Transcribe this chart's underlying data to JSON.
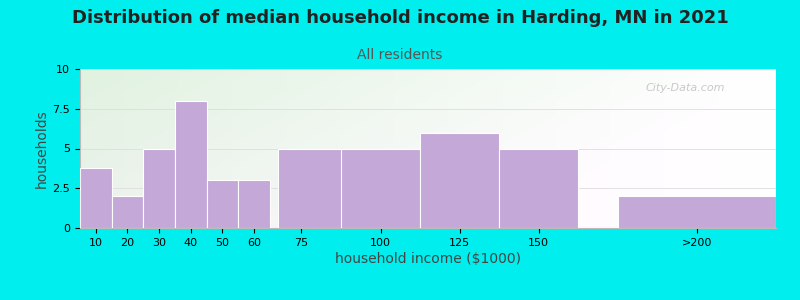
{
  "title": "Distribution of median household income in Harding, MN in 2021",
  "subtitle": "All residents",
  "xlabel": "household income ($1000)",
  "ylabel": "households",
  "background_color": "#00EEEE",
  "bar_color": "#C4A8D8",
  "bar_edge_color": "#ffffff",
  "categories": [
    "10",
    "20",
    "30",
    "40",
    "50",
    "60",
    "75",
    "100",
    "125",
    "150",
    ">200"
  ],
  "values": [
    3.8,
    2.0,
    5.0,
    8.0,
    3.0,
    3.0,
    5.0,
    5.0,
    6.0,
    5.0,
    2.0
  ],
  "bar_lefts": [
    5,
    15,
    25,
    35,
    45,
    55,
    67.5,
    87.5,
    112.5,
    137.5,
    175
  ],
  "bar_widths": [
    10,
    10,
    10,
    10,
    10,
    10,
    25,
    25,
    25,
    25,
    50
  ],
  "xlim": [
    5,
    225
  ],
  "ylim": [
    0,
    10
  ],
  "yticks": [
    0,
    2.5,
    5,
    7.5,
    10
  ],
  "xtick_positions": [
    10,
    20,
    30,
    40,
    50,
    60,
    75,
    100,
    125,
    150,
    200
  ],
  "xtick_labels": [
    "10",
    "20",
    "30",
    "40",
    "50",
    "60",
    "75",
    "100",
    "125",
    "150",
    ">200"
  ],
  "title_fontsize": 13,
  "subtitle_fontsize": 10,
  "subtitle_color": "#555555",
  "axis_label_fontsize": 10,
  "tick_fontsize": 8,
  "watermark": "City-Data.com"
}
